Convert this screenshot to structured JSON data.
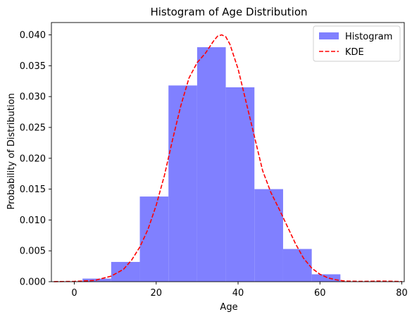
{
  "chart_data": {
    "type": "bar",
    "title": "Histogram of Age Distribution",
    "xlabel": "Age",
    "ylabel": "Probability of Distribution",
    "xlim": [
      -5.6,
      80.6
    ],
    "ylim": [
      0,
      0.042
    ],
    "xticks": [
      0,
      20,
      40,
      60,
      80
    ],
    "yticks": [
      0.0,
      0.005,
      0.01,
      0.015,
      0.02,
      0.025,
      0.03,
      0.035,
      0.04
    ],
    "ytick_labels": [
      "0.000",
      "0.005",
      "0.010",
      "0.015",
      "0.020",
      "0.025",
      "0.030",
      "0.035",
      "0.040"
    ],
    "grid": false,
    "legend_position": "top-right",
    "series": [
      {
        "name": "Histogram",
        "kind": "histogram",
        "color": "#8080ff",
        "bin_edges": [
          2,
          9,
          16,
          23,
          30,
          37,
          44,
          51,
          58,
          65
        ],
        "densities": [
          0.0005,
          0.0032,
          0.0138,
          0.0318,
          0.038,
          0.0315,
          0.015,
          0.0053,
          0.0012
        ]
      },
      {
        "name": "KDE",
        "kind": "line",
        "style": "dashed",
        "color": "#ff0000",
        "x": [
          -5,
          0,
          5,
          9,
          12,
          14,
          16,
          18,
          20,
          22,
          24,
          26,
          28,
          30,
          32,
          34,
          35,
          36,
          37,
          38,
          40,
          42,
          44,
          46,
          48,
          50,
          52,
          54,
          56,
          58,
          60,
          62,
          64,
          66,
          70,
          75,
          80
        ],
        "y": [
          1e-05,
          5e-05,
          0.0002,
          0.0009,
          0.002,
          0.0035,
          0.0056,
          0.0085,
          0.0124,
          0.0172,
          0.023,
          0.0285,
          0.033,
          0.0355,
          0.037,
          0.039,
          0.0398,
          0.04,
          0.0397,
          0.0385,
          0.0345,
          0.029,
          0.0235,
          0.018,
          0.0145,
          0.0118,
          0.009,
          0.0062,
          0.0038,
          0.0022,
          0.0012,
          0.0006,
          0.0003,
          0.0001,
          5e-05,
          0.0001,
          2e-05
        ]
      }
    ]
  }
}
